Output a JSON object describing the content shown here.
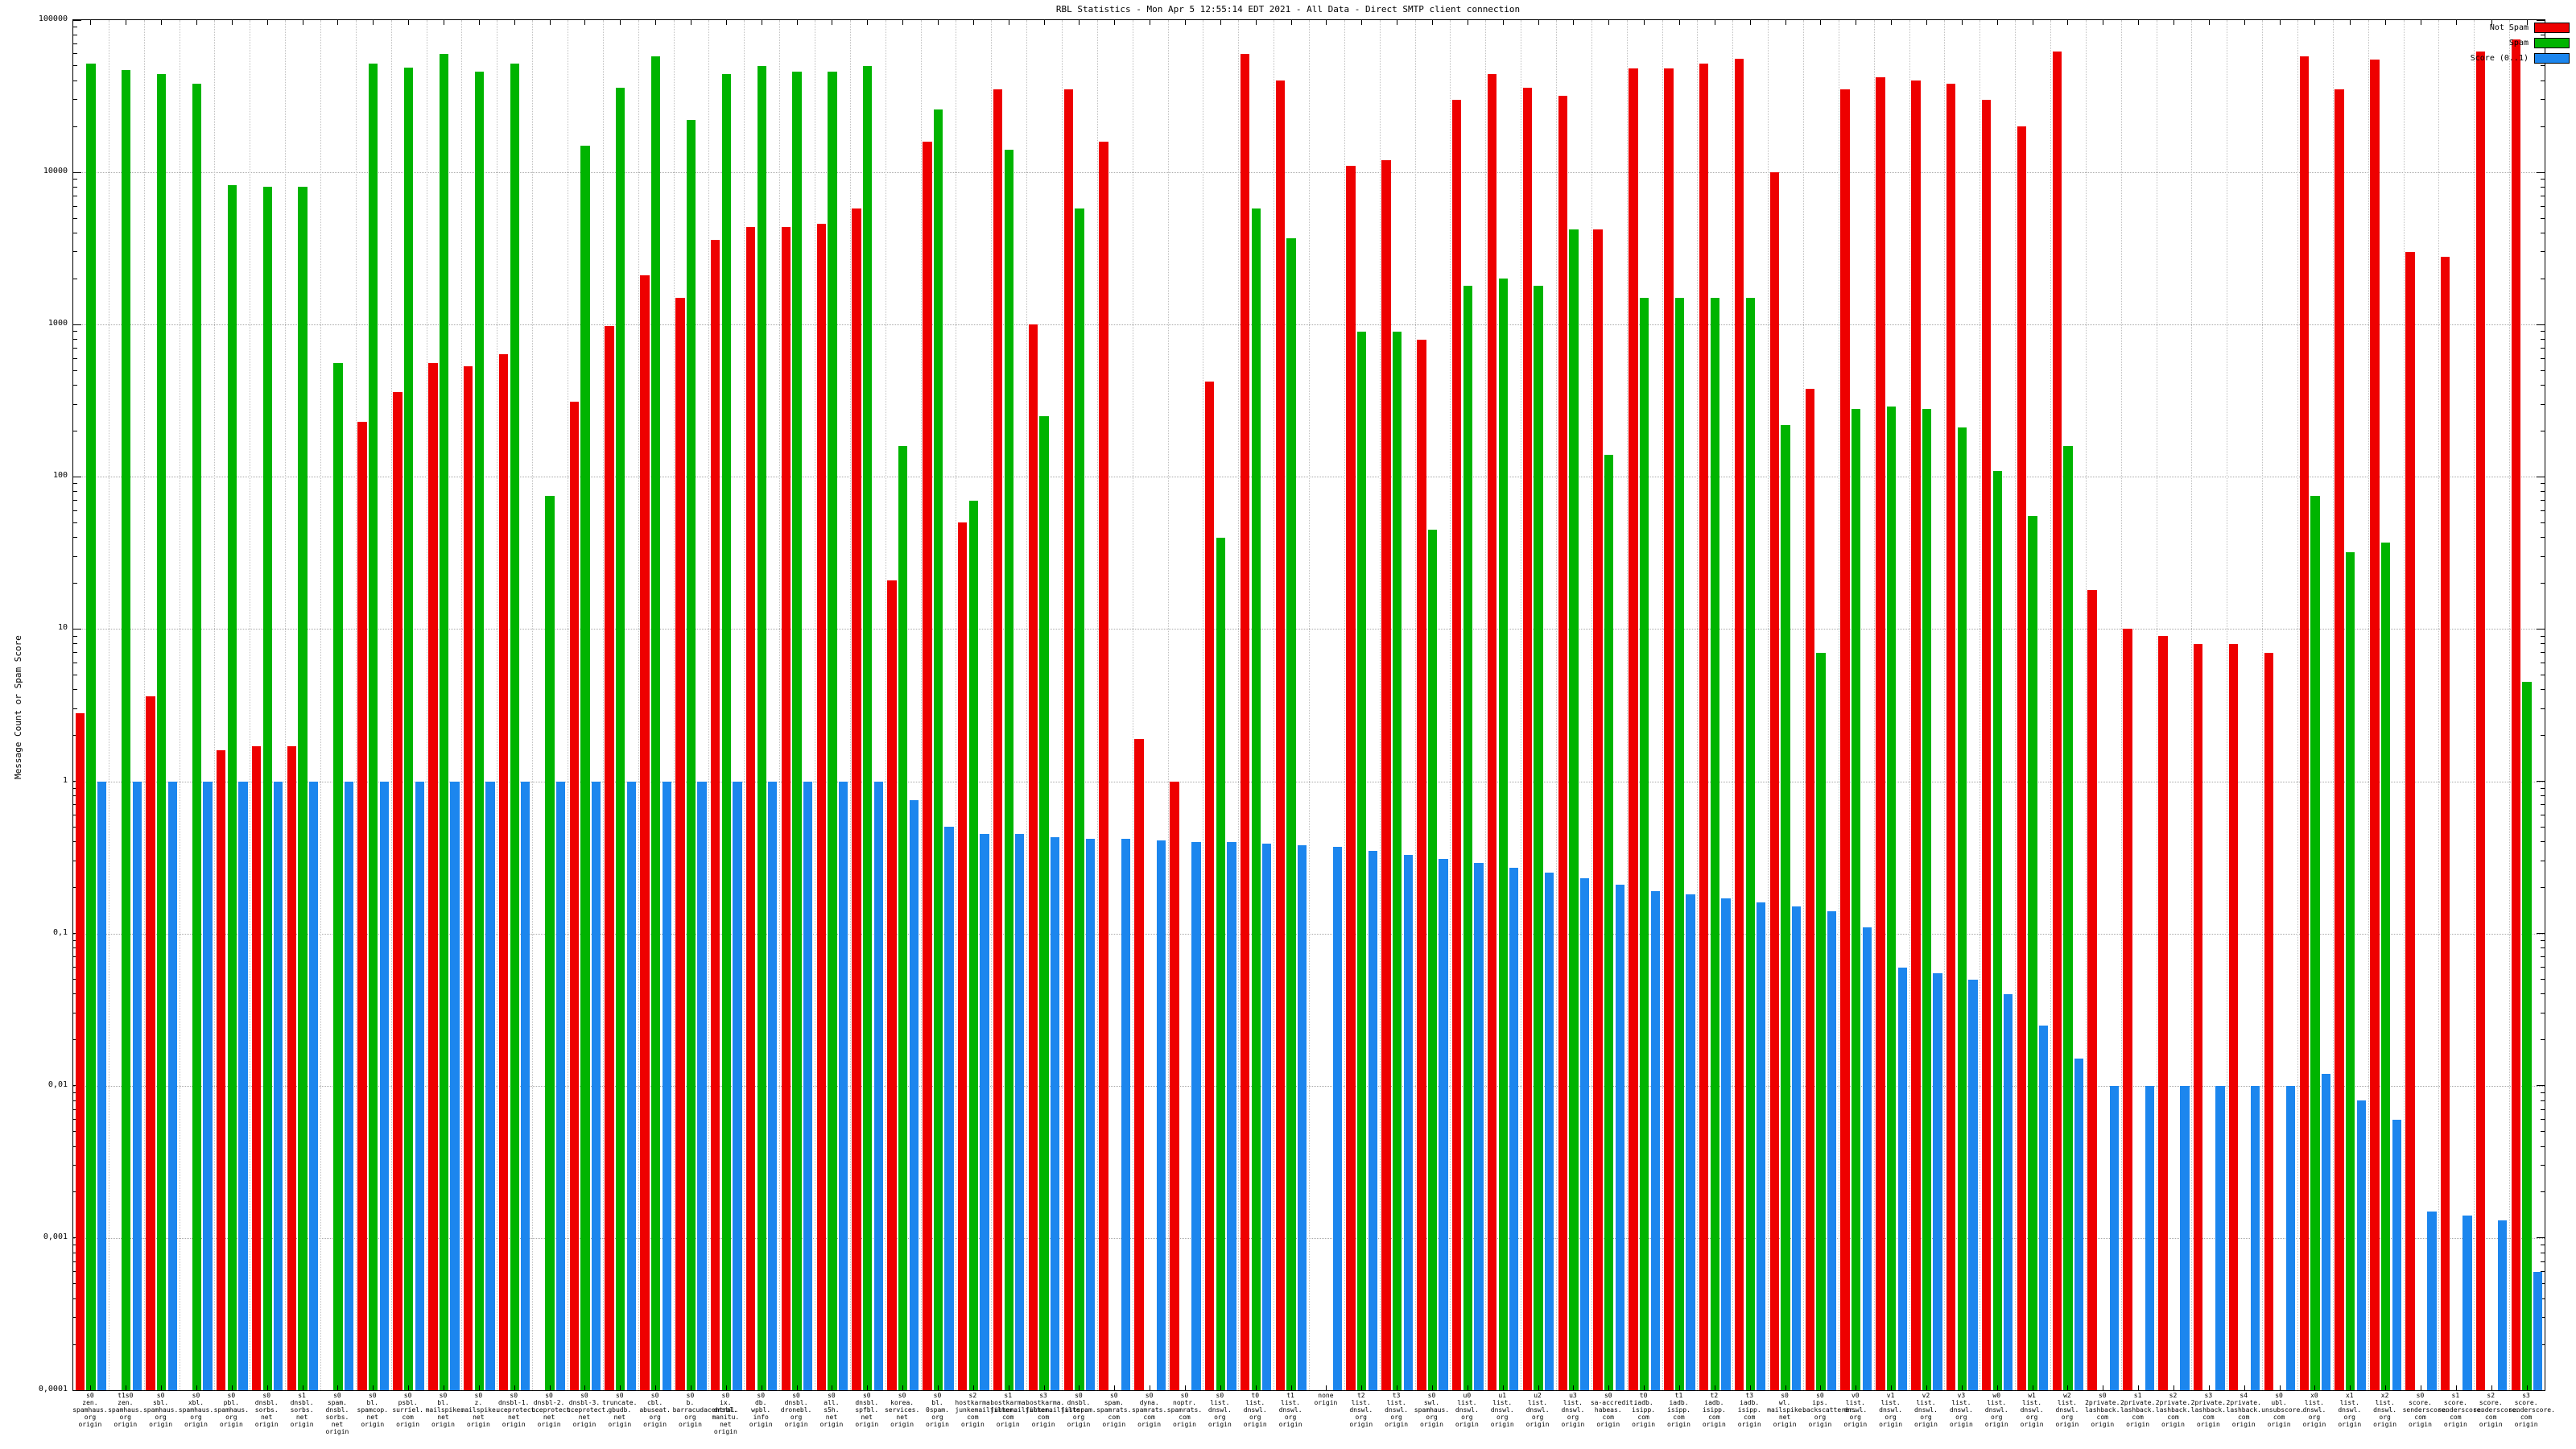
{
  "chart_data": {
    "type": "bar",
    "title": "RBL Statistics - Mon Apr 5 12:55:14 EDT 2021 - All Data - Direct SMTP client connection",
    "ylabel": "Message Count or Spam Score",
    "y_scale": "log",
    "ylim": [
      0.0001,
      100000
    ],
    "ytick_labels": [
      "100000",
      "10000",
      "1000",
      "100",
      "10",
      "1",
      "0,1",
      "0,01",
      "0,001",
      "0,0001"
    ],
    "grid": true,
    "legend_position": "top-right",
    "colors": {
      "not_spam": "#ee0000",
      "spam": "#00b400",
      "score": "#1c86ee"
    },
    "categories": [
      [
        "s0",
        "zen.",
        "spamhaus.",
        "org",
        "origin"
      ],
      [
        "t1s0",
        "zen.",
        "spamhaus.",
        "org",
        "origin"
      ],
      [
        "s0",
        "sbl.",
        "spamhaus.",
        "org",
        "origin"
      ],
      [
        "s0",
        "xbl.",
        "spamhaus.",
        "org",
        "origin"
      ],
      [
        "s0",
        "pbl.",
        "spamhaus.",
        "org",
        "origin"
      ],
      [
        "s0",
        "dnsbl.",
        "sorbs.",
        "net",
        "origin"
      ],
      [
        "s1",
        "dnsbl.",
        "sorbs.",
        "net",
        "origin"
      ],
      [
        "s0",
        "spam.",
        "dnsbl.",
        "sorbs.",
        "net",
        "origin"
      ],
      [
        "s0",
        "bl.",
        "spamcop.",
        "net",
        "origin"
      ],
      [
        "s0",
        "psbl.",
        "surriel.",
        "com",
        "origin"
      ],
      [
        "s0",
        "bl.",
        "mailspike.",
        "net",
        "origin"
      ],
      [
        "s0",
        "z.",
        "mailspike.",
        "net",
        "origin"
      ],
      [
        "s0",
        "dnsbl-1.",
        "uceprotect.",
        "net",
        "origin"
      ],
      [
        "s0",
        "dnsbl-2.",
        "uceprotect.",
        "net",
        "origin"
      ],
      [
        "s0",
        "dnsbl-3.",
        "uceprotect.",
        "net",
        "origin"
      ],
      [
        "s0",
        "truncate.",
        "gbudb.",
        "net",
        "origin"
      ],
      [
        "s0",
        "cbl.",
        "abuseat.",
        "org",
        "origin"
      ],
      [
        "s0",
        "b.",
        "barracudacentral.",
        "org",
        "origin"
      ],
      [
        "s0",
        "ix.",
        "dnsbl.",
        "manitu.",
        "net",
        "origin"
      ],
      [
        "s0",
        "db.",
        "wpbl.",
        "info",
        "origin"
      ],
      [
        "s0",
        "dnsbl.",
        "dronebl.",
        "org",
        "origin"
      ],
      [
        "s0",
        "all.",
        "s5h.",
        "net",
        "origin"
      ],
      [
        "s0",
        "dnsbl.",
        "spfbl.",
        "net",
        "origin"
      ],
      [
        "s0",
        "korea.",
        "services.",
        "net",
        "origin"
      ],
      [
        "s0",
        "bl.",
        "0spam.",
        "org",
        "origin"
      ],
      [
        "s2",
        "hostkarma.",
        "junkemailfilter.",
        "com",
        "origin"
      ],
      [
        "s1",
        "hostkarma.",
        "junkemailfilter.",
        "com",
        "origin"
      ],
      [
        "s3",
        "hostkarma.",
        "junkemailfilter.",
        "com",
        "origin"
      ],
      [
        "s0",
        "dnsbl.",
        "justspam.",
        "org",
        "origin"
      ],
      [
        "s0",
        "spam.",
        "spamrats.",
        "com",
        "origin"
      ],
      [
        "s0",
        "dyna.",
        "spamrats.",
        "com",
        "origin"
      ],
      [
        "s0",
        "noptr.",
        "spamrats.",
        "com",
        "origin"
      ],
      [
        "s0",
        "list.",
        "dnswl.",
        "org",
        "origin"
      ],
      [
        "t0",
        "list.",
        "dnswl.",
        "org",
        "origin"
      ],
      [
        "t1",
        "list.",
        "dnswl.",
        "org",
        "origin"
      ],
      [
        "none",
        "origin"
      ],
      [
        "t2",
        "list.",
        "dnswl.",
        "org",
        "origin"
      ],
      [
        "t3",
        "list.",
        "dnswl.",
        "org",
        "origin"
      ],
      [
        "s0",
        "swl.",
        "spamhaus.",
        "org",
        "origin"
      ],
      [
        "u0",
        "list.",
        "dnswl.",
        "org",
        "origin"
      ],
      [
        "u1",
        "list.",
        "dnswl.",
        "org",
        "origin"
      ],
      [
        "u2",
        "list.",
        "dnswl.",
        "org",
        "origin"
      ],
      [
        "u3",
        "list.",
        "dnswl.",
        "org",
        "origin"
      ],
      [
        "s0",
        "sa-accredit.",
        "habeas.",
        "com",
        "origin"
      ],
      [
        "t0",
        "iadb.",
        "isipp.",
        "com",
        "origin"
      ],
      [
        "t1",
        "iadb.",
        "isipp.",
        "com",
        "origin"
      ],
      [
        "t2",
        "iadb.",
        "isipp.",
        "com",
        "origin"
      ],
      [
        "t3",
        "iadb.",
        "isipp.",
        "com",
        "origin"
      ],
      [
        "s0",
        "wl.",
        "mailspike.",
        "net",
        "origin"
      ],
      [
        "s0",
        "ips.",
        "backscatterer.",
        "org",
        "origin"
      ],
      [
        "v0",
        "list.",
        "dnswl.",
        "org",
        "origin"
      ],
      [
        "v1",
        "list.",
        "dnswl.",
        "org",
        "origin"
      ],
      [
        "v2",
        "list.",
        "dnswl.",
        "org",
        "origin"
      ],
      [
        "v3",
        "list.",
        "dnswl.",
        "org",
        "origin"
      ],
      [
        "w0",
        "list.",
        "dnswl.",
        "org",
        "origin"
      ],
      [
        "w1",
        "list.",
        "dnswl.",
        "org",
        "origin"
      ],
      [
        "w2",
        "list.",
        "dnswl.",
        "org",
        "origin"
      ],
      [
        "s0",
        "2private.",
        "lashback.",
        "com",
        "origin"
      ],
      [
        "s1",
        "2private.",
        "lashback.",
        "com",
        "origin"
      ],
      [
        "s2",
        "2private.",
        "lashback.",
        "com",
        "origin"
      ],
      [
        "s3",
        "2private.",
        "lashback.",
        "com",
        "origin"
      ],
      [
        "s4",
        "2private.",
        "lashback.",
        "com",
        "origin"
      ],
      [
        "s0",
        "ubl.",
        "unsubscore.",
        "com",
        "origin"
      ],
      [
        "x0",
        "list.",
        "dnswl.",
        "org",
        "origin"
      ],
      [
        "x1",
        "list.",
        "dnswl.",
        "org",
        "origin"
      ],
      [
        "x2",
        "list.",
        "dnswl.",
        "org",
        "origin"
      ],
      [
        "s0",
        "score.",
        "senderscore.",
        "com",
        "origin"
      ],
      [
        "s1",
        "score.",
        "senderscore.",
        "com",
        "origin"
      ],
      [
        "s2",
        "score.",
        "senderscore.",
        "com",
        "origin"
      ],
      [
        "s3",
        "score.",
        "senderscore.",
        "com",
        "origin"
      ]
    ],
    "series": [
      {
        "name": "Not Spam",
        "color_key": "not_spam",
        "values": [
          2.8,
          0,
          3.6,
          0,
          1.6,
          1.7,
          1.7,
          0,
          230,
          360,
          560,
          530,
          640,
          0,
          310,
          980,
          2100,
          1500,
          3600,
          4400,
          4400,
          4600,
          5800,
          21,
          16000,
          50,
          35000,
          1000,
          35000,
          16000,
          1.9,
          1.0,
          420,
          60000,
          40000,
          0,
          11000,
          12000,
          800,
          30000,
          44000,
          36000,
          32000,
          4200,
          48000,
          48000,
          52000,
          56000,
          10000,
          380,
          35000,
          42000,
          40000,
          38000,
          30000,
          20000,
          62000,
          18,
          10,
          9,
          8,
          8,
          7,
          58000,
          35000,
          55000,
          3000,
          2800,
          62000,
          75000
        ]
      },
      {
        "name": "Spam",
        "color_key": "spam",
        "values": [
          52000,
          47000,
          44000,
          38000,
          8200,
          8000,
          8000,
          560,
          52000,
          49000,
          60000,
          46000,
          52000,
          75,
          15000,
          36000,
          58000,
          22000,
          44000,
          50000,
          46000,
          46000,
          50000,
          160,
          26000,
          70,
          14000,
          250,
          5800,
          0,
          0,
          0,
          40,
          5800,
          3700,
          0,
          900,
          900,
          45,
          1800,
          2000,
          1800,
          4200,
          140,
          1500,
          1500,
          1500,
          1500,
          220,
          7,
          280,
          290,
          280,
          210,
          110,
          55,
          160,
          0,
          0,
          0,
          0,
          0,
          0,
          75,
          32,
          37,
          0,
          0,
          0,
          4.5
        ]
      },
      {
        "name": "Score (0..1)",
        "color_key": "score",
        "values": [
          1,
          1,
          1,
          1,
          1,
          1,
          1,
          1,
          1,
          1,
          1,
          1,
          1,
          1,
          1,
          1,
          1,
          1,
          1,
          1,
          1,
          1,
          1,
          0.75,
          0.5,
          0.45,
          0.45,
          0.43,
          0.42,
          0.42,
          0.41,
          0.4,
          0.4,
          0.39,
          0.38,
          0.37,
          0.35,
          0.33,
          0.31,
          0.29,
          0.27,
          0.25,
          0.23,
          0.21,
          0.19,
          0.18,
          0.17,
          0.16,
          0.15,
          0.14,
          0.11,
          0.06,
          0.055,
          0.05,
          0.04,
          0.025,
          0.015,
          0.01,
          0.01,
          0.01,
          0.01,
          0.01,
          0.01,
          0.012,
          0.008,
          0.006,
          0.0015,
          0.0014,
          0.0013,
          0.0006
        ]
      }
    ]
  }
}
